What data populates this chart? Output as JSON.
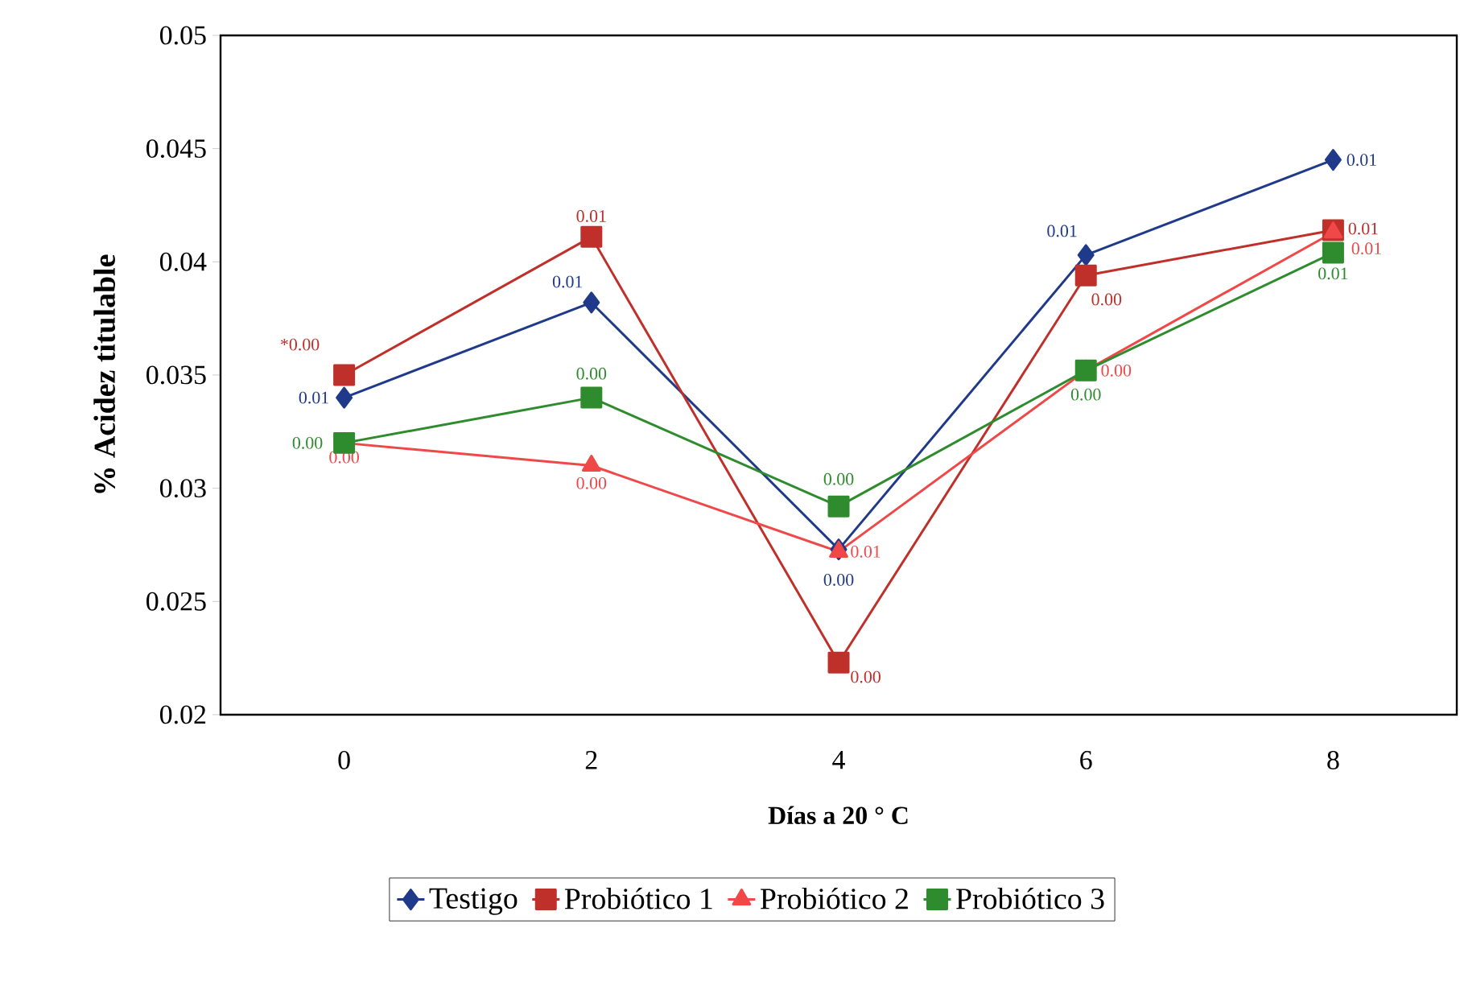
{
  "chart_data": {
    "type": "line",
    "xlabel": "Días a 20 ° C",
    "ylabel": "% Acidez titulable",
    "categories": [
      "0",
      "2",
      "4",
      "6",
      "8"
    ],
    "ylim": [
      0.02,
      0.05
    ],
    "yticks": [
      0.02,
      0.025,
      0.03,
      0.035,
      0.04,
      0.045,
      0.05
    ],
    "grid": false,
    "legend": "bottom",
    "series": [
      {
        "name": "Testigo",
        "color": "#1f3a8a",
        "marker": "diamond",
        "values": [
          0.034,
          0.0382,
          0.0273,
          0.0403,
          0.0445
        ]
      },
      {
        "name": "Probiótico 1",
        "color": "#c0302b",
        "marker": "square",
        "values": [
          0.035,
          0.0411,
          0.0223,
          0.0394,
          0.0414
        ]
      },
      {
        "name": "Probiótico 2",
        "color": "#f04848",
        "marker": "triangle",
        "values": [
          0.032,
          0.031,
          0.0272,
          0.0352,
          0.0413
        ]
      },
      {
        "name": "Probiótico 3",
        "color": "#2e8b2e",
        "marker": "square",
        "values": [
          0.032,
          0.034,
          0.0292,
          0.0352,
          0.0404
        ]
      }
    ],
    "annotations": [
      {
        "text": "0.01",
        "x": "0",
        "y": 0.034
      },
      {
        "text": "0.01",
        "x": "2",
        "y": 0.0382
      },
      {
        "text": "0.00",
        "x": "4",
        "y": 0.0273
      },
      {
        "text": "0.01",
        "x": "6",
        "y": 0.0403
      },
      {
        "text": "0.01",
        "x": "8",
        "y": 0.0445
      },
      {
        "text": "*0.00",
        "x": "0",
        "y": 0.035
      },
      {
        "text": "0.01",
        "x": "2",
        "y": 0.0411
      },
      {
        "text": "0.00",
        "x": "4",
        "y": 0.0223
      },
      {
        "text": "0.00",
        "x": "6",
        "y": 0.0394
      },
      {
        "text": "0.01",
        "x": "8",
        "y": 0.0414
      },
      {
        "text": "0.00",
        "x": "0",
        "y": 0.032
      },
      {
        "text": "0.00",
        "x": "2",
        "y": 0.031
      },
      {
        "text": "0.01",
        "x": "4",
        "y": 0.0272
      },
      {
        "text": "0.00",
        "x": "6",
        "y": 0.0352
      },
      {
        "text": "0.01",
        "x": "8",
        "y": 0.0413
      },
      {
        "text": "0.00",
        "x": "0",
        "y": 0.032
      },
      {
        "text": "0.00",
        "x": "2",
        "y": 0.034
      },
      {
        "text": "0.00",
        "x": "4",
        "y": 0.0292
      },
      {
        "text": "0.00",
        "x": "6",
        "y": 0.0352
      },
      {
        "text": "0.01",
        "x": "8",
        "y": 0.0404
      }
    ]
  }
}
